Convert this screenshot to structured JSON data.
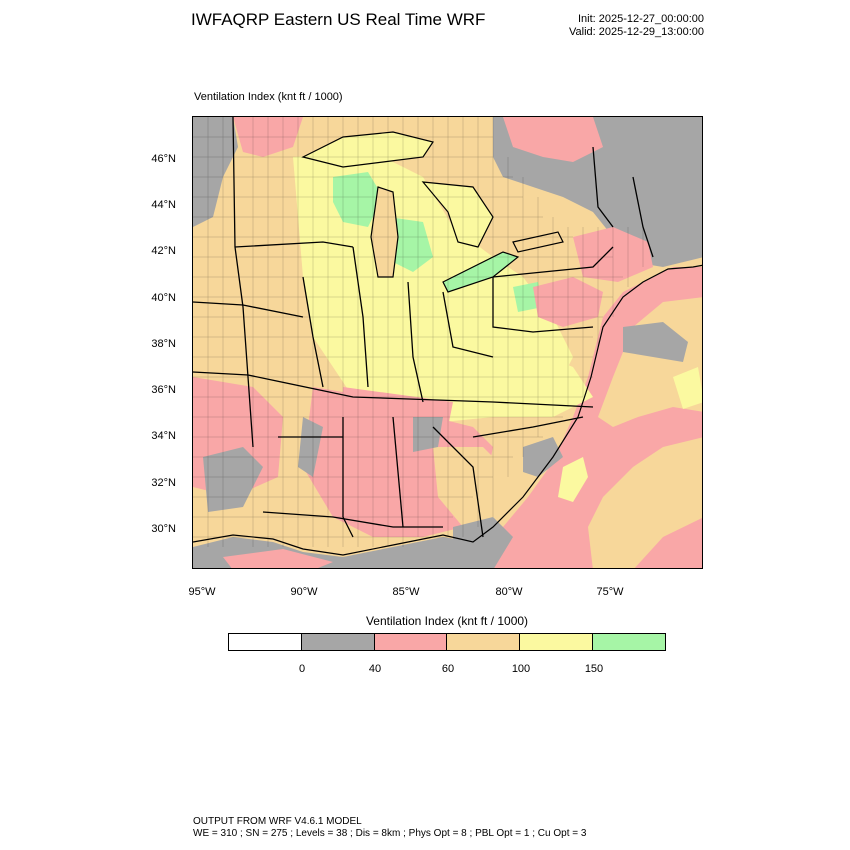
{
  "header": {
    "title": "IWFAQRP Eastern US Real Time WRF",
    "init": "Init: 2025-12-27_00:00:00",
    "valid": "Valid: 2025-12-29_13:00:00"
  },
  "field_label": "Ventilation Index   (knt ft / 1000)",
  "map": {
    "lat_ticks": [
      "46°N",
      "44°N",
      "42°N",
      "40°N",
      "38°N",
      "36°N",
      "34°N",
      "32°N",
      "30°N"
    ],
    "lon_ticks": [
      "95°W",
      "90°W",
      "85°W",
      "80°W",
      "75°W"
    ],
    "colors": {
      "nodata_white": "#ffffff",
      "gray_0_40": "#a6a6a6",
      "pink_40_60": "#f9a7a7",
      "orange_60_100": "#f7d79a",
      "yellow_100_150": "#fbf9a0",
      "green_150_plus": "#a6f5a6",
      "boundary": "#000000"
    }
  },
  "colorbar": {
    "title": "Ventilation Index  (knt ft / 1000)",
    "colors": [
      "#ffffff",
      "#a6a6a6",
      "#f9a7a7",
      "#f7d79a",
      "#fbf9a0",
      "#a6f5a6"
    ],
    "ticks": [
      "0",
      "40",
      "60",
      "100",
      "150"
    ]
  },
  "footer": {
    "line1": "OUTPUT FROM WRF V4.6.1 MODEL",
    "line2": "WE = 310 ; SN = 275 ; Levels = 38 ; Dis = 8km ; Phys Opt = 8 ; PBL Opt = 1 ; Cu Opt = 3"
  }
}
